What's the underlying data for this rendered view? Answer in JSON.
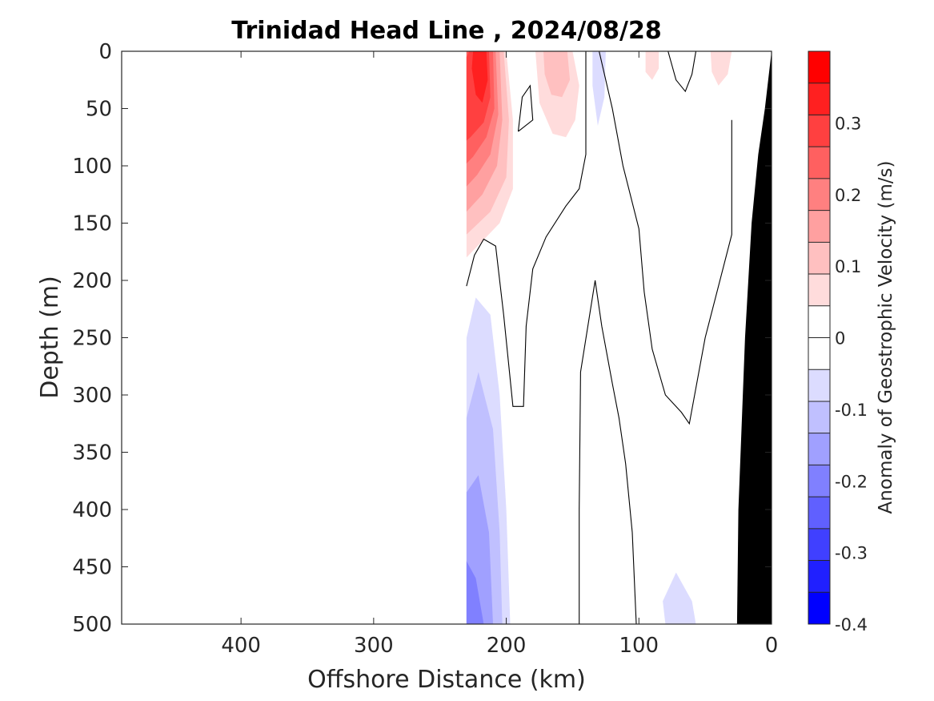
{
  "chart_data": {
    "type": "heatmap",
    "title": "Trinidad Head Line , 2024/08/28",
    "xlabel": "Offshore Distance (km)",
    "ylabel": "Depth (m)",
    "xlim": [
      490,
      0
    ],
    "ylim": [
      0,
      500
    ],
    "x_reversed": true,
    "y_reversed": true,
    "x_ticks": [
      400,
      300,
      200,
      100,
      0
    ],
    "y_ticks": [
      0,
      50,
      100,
      150,
      200,
      250,
      300,
      350,
      400,
      450,
      500
    ],
    "colorbar": {
      "label": "Anomaly of Geostrophic Velocity (m/s)",
      "range": [
        -0.4,
        0.4
      ],
      "ticks": [
        -0.4,
        -0.3,
        -0.2,
        -0.1,
        0,
        0.1,
        0.2,
        0.3
      ],
      "tick_labels": [
        "-0.4",
        "-0.3",
        "-0.2",
        "-0.1",
        "0",
        "0.1",
        "0.2",
        "0.3"
      ],
      "levels": [
        -0.4,
        -0.35,
        -0.3,
        -0.25,
        -0.2,
        -0.15,
        -0.1,
        -0.05,
        0,
        0.05,
        0.1,
        0.15,
        0.2,
        0.25,
        0.3,
        0.35,
        0.4
      ],
      "colors": [
        "#0000ff",
        "#2020ff",
        "#4040ff",
        "#6060ff",
        "#8080ff",
        "#a0a0ff",
        "#c0c0ff",
        "#dcdcff",
        "#ffffff",
        "#ffffff",
        "#ffdcdc",
        "#ffc0c0",
        "#ffa0a0",
        "#ff8080",
        "#ff6060",
        "#ff4040",
        "#ff2020",
        "#ff0000"
      ]
    },
    "filled_regions": [
      {
        "level": 0.05,
        "color": "#ffdcdc",
        "polygon": [
          [
            230,
            0
          ],
          [
            200,
            0
          ],
          [
            195,
            60
          ],
          [
            195,
            120
          ],
          [
            205,
            150
          ],
          [
            230,
            180
          ]
        ]
      },
      {
        "level": 0.1,
        "color": "#ffc0c0",
        "polygon": [
          [
            230,
            0
          ],
          [
            202,
            0
          ],
          [
            198,
            60
          ],
          [
            200,
            110
          ],
          [
            212,
            140
          ],
          [
            230,
            160
          ]
        ]
      },
      {
        "level": 0.15,
        "color": "#ffa0a0",
        "polygon": [
          [
            230,
            0
          ],
          [
            205,
            0
          ],
          [
            203,
            60
          ],
          [
            207,
            100
          ],
          [
            218,
            125
          ],
          [
            230,
            140
          ]
        ]
      },
      {
        "level": 0.2,
        "color": "#ff8080",
        "polygon": [
          [
            230,
            0
          ],
          [
            208,
            0
          ],
          [
            206,
            55
          ],
          [
            212,
            90
          ],
          [
            222,
            108
          ],
          [
            230,
            118
          ]
        ]
      },
      {
        "level": 0.25,
        "color": "#ff6060",
        "polygon": [
          [
            230,
            0
          ],
          [
            210,
            0
          ],
          [
            209,
            50
          ],
          [
            215,
            75
          ],
          [
            225,
            92
          ],
          [
            230,
            98
          ]
        ]
      },
      {
        "level": 0.3,
        "color": "#ff4040",
        "polygon": [
          [
            228,
            0
          ],
          [
            213,
            0
          ],
          [
            212,
            40
          ],
          [
            217,
            62
          ],
          [
            227,
            75
          ],
          [
            230,
            78
          ],
          [
            230,
            5
          ]
        ]
      },
      {
        "level": 0.35,
        "color": "#ff2020",
        "polygon": [
          [
            225,
            0
          ],
          [
            215,
            0
          ],
          [
            214,
            25
          ],
          [
            218,
            45
          ],
          [
            223,
            38
          ],
          [
            226,
            15
          ]
        ]
      },
      {
        "level": 0.05,
        "color": "#ffdcdc",
        "polygon": [
          [
            178,
            0
          ],
          [
            150,
            0
          ],
          [
            145,
            30
          ],
          [
            148,
            60
          ],
          [
            155,
            75
          ],
          [
            165,
            72
          ],
          [
            175,
            45
          ]
        ]
      },
      {
        "level": 0.1,
        "color": "#ffc0c0",
        "polygon": [
          [
            172,
            0
          ],
          [
            154,
            0
          ],
          [
            152,
            25
          ],
          [
            158,
            40
          ],
          [
            166,
            38
          ],
          [
            171,
            20
          ]
        ]
      },
      {
        "level": 0.05,
        "color": "#ffdcdc",
        "polygon": [
          [
            95,
            0
          ],
          [
            85,
            0
          ],
          [
            85,
            15
          ],
          [
            90,
            25
          ],
          [
            95,
            18
          ]
        ]
      },
      {
        "level": 0.05,
        "color": "#ffdcdc",
        "polygon": [
          [
            46,
            0
          ],
          [
            30,
            0
          ],
          [
            33,
            20
          ],
          [
            40,
            30
          ],
          [
            45,
            18
          ]
        ]
      },
      {
        "level": -0.05,
        "color": "#dcdcff",
        "polygon": [
          [
            135,
            0
          ],
          [
            125,
            0
          ],
          [
            126,
            40
          ],
          [
            131,
            65
          ],
          [
            135,
            30
          ]
        ]
      },
      {
        "level": -0.05,
        "color": "#dcdcff",
        "polygon": [
          [
            230,
            250
          ],
          [
            223,
            215
          ],
          [
            212,
            230
          ],
          [
            205,
            300
          ],
          [
            200,
            400
          ],
          [
            197,
            500
          ],
          [
            230,
            500
          ]
        ]
      },
      {
        "level": -0.1,
        "color": "#c0c0ff",
        "polygon": [
          [
            230,
            320
          ],
          [
            221,
            280
          ],
          [
            210,
            330
          ],
          [
            205,
            420
          ],
          [
            203,
            500
          ],
          [
            230,
            500
          ]
        ]
      },
      {
        "level": -0.15,
        "color": "#a0a0ff",
        "polygon": [
          [
            230,
            385
          ],
          [
            221,
            370
          ],
          [
            213,
            420
          ],
          [
            210,
            500
          ],
          [
            230,
            500
          ]
        ]
      },
      {
        "level": -0.2,
        "color": "#8080ff",
        "polygon": [
          [
            230,
            445
          ],
          [
            223,
            460
          ],
          [
            217,
            500
          ],
          [
            230,
            500
          ]
        ]
      },
      {
        "level": -0.05,
        "color": "#dcdcff",
        "polygon": [
          [
            80,
            500
          ],
          [
            82,
            480
          ],
          [
            72,
            455
          ],
          [
            60,
            480
          ],
          [
            57,
            500
          ]
        ]
      }
    ],
    "contours_zero": [
      {
        "points": [
          [
            230,
            205
          ],
          [
            224,
            178
          ],
          [
            217,
            164
          ],
          [
            208,
            170
          ],
          [
            202,
            230
          ],
          [
            195,
            310
          ],
          [
            187,
            310
          ],
          [
            185,
            240
          ],
          [
            180,
            190
          ],
          [
            170,
            162
          ],
          [
            155,
            135
          ],
          [
            145,
            120
          ],
          [
            140,
            90
          ],
          [
            140,
            0
          ]
        ]
      },
      {
        "points": [
          [
            191,
            70
          ],
          [
            188,
            40
          ],
          [
            182,
            30
          ],
          [
            180,
            60
          ],
          [
            191,
            70
          ]
        ]
      },
      {
        "points": [
          [
            145,
            500
          ],
          [
            145,
            400
          ],
          [
            144,
            280
          ],
          [
            133,
            200
          ],
          [
            128,
            240
          ],
          [
            120,
            290
          ],
          [
            115,
            320
          ],
          [
            110,
            360
          ],
          [
            105,
            420
          ],
          [
            102,
            500
          ]
        ]
      },
      {
        "points": [
          [
            130,
            0
          ],
          [
            120,
            50
          ],
          [
            112,
            100
          ],
          [
            100,
            155
          ],
          [
            96,
            210
          ],
          [
            90,
            260
          ],
          [
            80,
            300
          ],
          [
            68,
            315
          ],
          [
            62,
            325
          ],
          [
            50,
            250
          ],
          [
            30,
            160
          ],
          [
            30,
            60
          ]
        ]
      },
      {
        "points": [
          [
            78,
            0
          ],
          [
            72,
            25
          ],
          [
            65,
            35
          ],
          [
            60,
            20
          ],
          [
            57,
            0
          ]
        ]
      }
    ],
    "land_mask": [
      [
        0,
        0
      ],
      [
        5,
        50
      ],
      [
        10,
        90
      ],
      [
        15,
        150
      ],
      [
        20,
        250
      ],
      [
        25,
        400
      ],
      [
        26,
        500
      ],
      [
        0,
        500
      ]
    ]
  }
}
